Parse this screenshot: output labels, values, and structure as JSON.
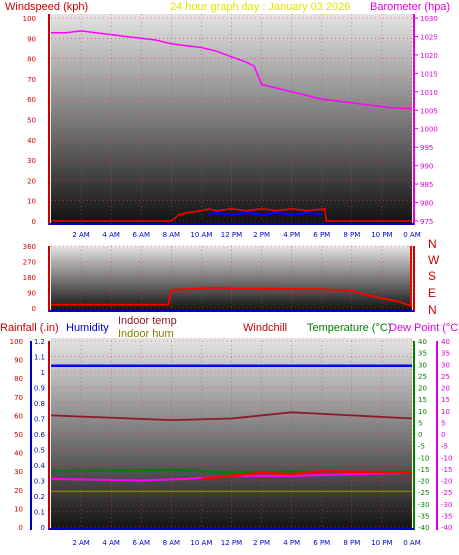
{
  "panel1": {
    "left_title": "Windspeed (kph)",
    "center_title": "24 hour graph day : January 03 2026",
    "right_title": "Barometer (hpa)"
  },
  "panel2": {
    "compass": [
      "N",
      "W",
      "S",
      "E",
      "N"
    ]
  },
  "panel3": {
    "headers": {
      "rainfall": "Rainfall (.in)",
      "humidity": "Humidity",
      "indoor_temp": "Indoor temp",
      "indoor_hum": "Indoor hum",
      "windchill": "Windchill",
      "temperature": "Temperature (°C)",
      "dewpoint": "Dew Point (°C)"
    }
  },
  "colors": {
    "wind": "#ff0000",
    "gust": "#0000ff",
    "barometer": "#ff00ff",
    "humidity": "#0000ff",
    "indoor_temp": "#8b1a2a",
    "indoor_hum": "#808000",
    "windchill": "#ff0000",
    "temperature": "#008000",
    "dewpoint": "#ff00ff"
  },
  "chart_data": [
    {
      "type": "line",
      "title": "24 hour graph day : January 03 2026",
      "x_ticks": [
        "2 AM",
        "4 AM",
        "6 AM",
        "8 AM",
        "10 AM",
        "12 PM",
        "2 PM",
        "4 PM",
        "6 PM",
        "8 PM",
        "10 PM",
        "0 AM"
      ],
      "y_left": {
        "label": "Windspeed (kph)",
        "ticks": [
          0,
          10,
          20,
          30,
          40,
          50,
          60,
          70,
          80,
          90,
          100
        ],
        "range": [
          0,
          100
        ]
      },
      "y_right": {
        "label": "Barometer (hpa)",
        "ticks": [
          975,
          980,
          985,
          990,
          995,
          1000,
          1005,
          1010,
          1015,
          1020,
          1025,
          1030
        ],
        "range": [
          975,
          1030
        ]
      },
      "series": [
        {
          "name": "Barometer (hpa)",
          "axis": "right",
          "x_hours": [
            0,
            1,
            2,
            3,
            4,
            5,
            6,
            7,
            8,
            9,
            10,
            11,
            12,
            13,
            13.5,
            14,
            15,
            16,
            17,
            18,
            19,
            20,
            21,
            22,
            23,
            24
          ],
          "values": [
            1026,
            1026,
            1026.5,
            1026,
            1025.5,
            1025,
            1024.5,
            1024,
            1023,
            1022.5,
            1022,
            1021,
            1019.5,
            1018,
            1017,
            1012,
            1011,
            1010,
            1009,
            1008,
            1007.5,
            1007,
            1006.5,
            1006,
            1005.5,
            1005.5
          ]
        },
        {
          "name": "Windspeed (kph)",
          "axis": "left",
          "x_hours": [
            0,
            8,
            8.5,
            9,
            10,
            10.5,
            11,
            12,
            13,
            14,
            15,
            16,
            17,
            18.2,
            18.3,
            24
          ],
          "values": [
            0,
            0,
            3,
            4,
            5,
            6,
            5,
            6,
            5,
            6,
            5,
            6,
            5,
            6,
            0,
            0
          ]
        },
        {
          "name": "Gust",
          "axis": "left",
          "x_hours": [
            10.5,
            11,
            12,
            13,
            14,
            15,
            16,
            17,
            18
          ],
          "values": [
            3,
            4,
            3,
            4,
            3,
            4,
            3,
            4,
            3
          ]
        }
      ]
    },
    {
      "type": "line",
      "y_left": {
        "ticks": [
          0,
          90,
          180,
          270,
          360
        ],
        "range": [
          0,
          360
        ]
      },
      "y_right": {
        "ticks": [
          "N",
          "E",
          "S",
          "W",
          "N"
        ]
      },
      "series": [
        {
          "name": "Wind direction",
          "x_hours": [
            0,
            7.8,
            8,
            11,
            12,
            14,
            16,
            18,
            20,
            21,
            22,
            23,
            24
          ],
          "values": [
            20,
            20,
            105,
            118,
            113,
            112,
            111,
            110,
            100,
            75,
            55,
            40,
            10
          ]
        }
      ]
    },
    {
      "type": "line",
      "y_rain": {
        "ticks": [
          0,
          10,
          20,
          30,
          40,
          50,
          60,
          70,
          80,
          90,
          100
        ],
        "range": [
          0,
          100
        ]
      },
      "y_hum": {
        "ticks": [
          0,
          0.1,
          0.2,
          0.3,
          0.4,
          0.5,
          0.6,
          0.7,
          0.8,
          0.9,
          1,
          1.1,
          1.2
        ],
        "range": [
          0,
          1.2
        ]
      },
      "y_temp": {
        "ticks": [
          40,
          35,
          30,
          25,
          20,
          15,
          10,
          5,
          0,
          -5,
          -10,
          -15,
          -20,
          -25,
          -30,
          -35,
          -40
        ],
        "range": [
          -40,
          40
        ]
      },
      "series": [
        {
          "name": "Humidity",
          "x_hours": [
            0,
            24
          ],
          "values": [
            1.04,
            1.04
          ]
        },
        {
          "name": "Indoor temp",
          "x_hours": [
            0,
            8,
            12,
            16,
            20,
            24
          ],
          "values": [
            0.72,
            0.69,
            0.7,
            0.74,
            0.72,
            0.7
          ]
        },
        {
          "name": "Temperature (°C)",
          "x_hours": [
            0,
            8,
            12,
            16,
            20,
            24
          ],
          "values": [
            0.36,
            0.37,
            0.35,
            0.36,
            0.35,
            0.36
          ]
        },
        {
          "name": "Dew Point (°C)",
          "x_hours": [
            0,
            6,
            9,
            12,
            16,
            20,
            24
          ],
          "values": [
            0.31,
            0.3,
            0.31,
            0.33,
            0.33,
            0.34,
            0.35
          ]
        },
        {
          "name": "Windchill",
          "x_hours": [
            10,
            12,
            14,
            16,
            18,
            24
          ],
          "values": [
            0.31,
            0.33,
            0.35,
            0.34,
            0.36,
            0.35
          ]
        },
        {
          "name": "Indoor hum",
          "x_hours": [
            0,
            8,
            12,
            16,
            20,
            24
          ],
          "values": [
            0.23,
            0.23,
            0.23,
            0.23,
            0.23,
            0.23
          ]
        }
      ]
    }
  ]
}
